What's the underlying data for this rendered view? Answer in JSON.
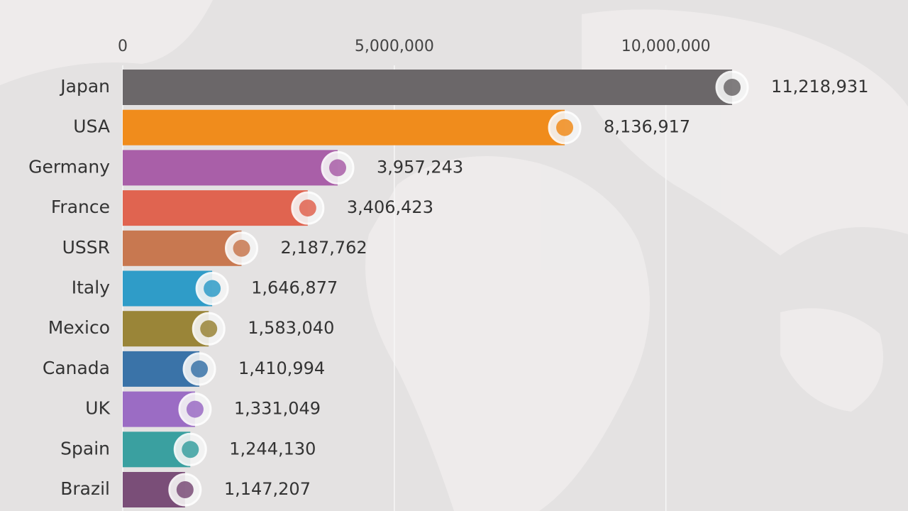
{
  "chart_data": {
    "type": "bar",
    "orientation": "horizontal",
    "categories": [
      "Japan",
      "USA",
      "Germany",
      "France",
      "USSR",
      "Italy",
      "Mexico",
      "Canada",
      "UK",
      "Spain",
      "Brazil"
    ],
    "values": [
      11218931,
      8136917,
      3957243,
      3406423,
      2187762,
      1646877,
      1583040,
      1410994,
      1331049,
      1244130,
      1147207
    ],
    "value_labels": [
      "11,218,931",
      "8,136,917",
      "3,957,243",
      "3,406,423",
      "2,187,762",
      "1,646,877",
      "1,583,040",
      "1,410,994",
      "1,331,049",
      "1,244,130",
      "1,147,207"
    ],
    "colors": [
      "#6b6769",
      "#f08c1c",
      "#a95fa8",
      "#e06450",
      "#c87850",
      "#2f9cc8",
      "#9a8538",
      "#3a73a8",
      "#9b6cc4",
      "#3aa0a0",
      "#7a4e78"
    ],
    "xlim": [
      0,
      14000000
    ],
    "xticks": [
      0,
      {
        "value": 5000000,
        "label": "5,000,000"
      },
      {
        "value": 10000000,
        "label": "10,000,000"
      }
    ],
    "grid": true
  }
}
